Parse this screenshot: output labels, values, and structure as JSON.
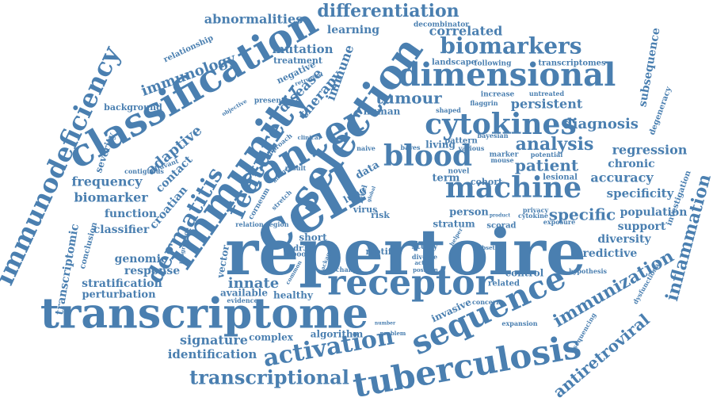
{
  "cloud": {
    "color": "#4a7fb0",
    "words": [
      "repertoire",
      "cell",
      "immunity",
      "cancer",
      "selection",
      "classification",
      "transcriptome",
      "receptor",
      "sequence",
      "tuberculosis",
      "dimensional",
      "cytokines",
      "machine",
      "blood",
      "feature",
      "biomarkers",
      "immunodeficiency",
      "activation",
      "transcriptional",
      "dermatitis",
      "analysis",
      "patient",
      "differentiation",
      "inflammation",
      "immunization",
      "antiretroviral",
      "specific",
      "immunology",
      "adaptive",
      "diagnosis",
      "tumour",
      "regression",
      "persistent",
      "accuracy",
      "specificity",
      "population",
      "support",
      "diversity",
      "predictive",
      "innate",
      "signature",
      "identification",
      "frequency",
      "biomarker",
      "function",
      "classifier",
      "genomic",
      "response",
      "stratification",
      "perturbation",
      "transcriptomic",
      "abnormalities",
      "correlated",
      "learning",
      "mutation",
      "therapy",
      "disease",
      "immune",
      "contact",
      "croatian",
      "severity",
      "subsequence",
      "chronic",
      "invasive",
      "control",
      "algorithm",
      "complex",
      "available",
      "healthy",
      "vector",
      "study",
      "motif",
      "person",
      "stratum",
      "cohort",
      "term",
      "virus",
      "risk",
      "short",
      "human",
      "lung",
      "data",
      "living",
      "pattern",
      "landscape",
      "following",
      "transcriptomes",
      "background",
      "relationship",
      "treatment",
      "negative",
      "present",
      "increase",
      "untreated",
      "degeneracy",
      "investigation",
      "conclusion",
      "related",
      "concern",
      "hypothesis",
      "expansion",
      "exposure",
      "sequencing",
      "dysfunctional",
      "scorad",
      "lesional",
      "lpboost",
      "level",
      "novel",
      "marker",
      "potential",
      "various",
      "bayesian",
      "bayes",
      "naive",
      "region",
      "relation",
      "evidence",
      "change",
      "problem",
      "position",
      "common",
      "package",
      "cdr3β",
      "stretch",
      "corneum",
      "clinical",
      "objective",
      "approach",
      "result",
      "contiguous",
      "adjuvant",
      "retroviral",
      "decombinator",
      "flaggrin",
      "shaped",
      "mouse",
      "privacy",
      "cytokine",
      "product",
      "helper",
      "active",
      "diverse",
      "subset",
      "progression",
      "antigen",
      "global",
      "number"
    ]
  }
}
